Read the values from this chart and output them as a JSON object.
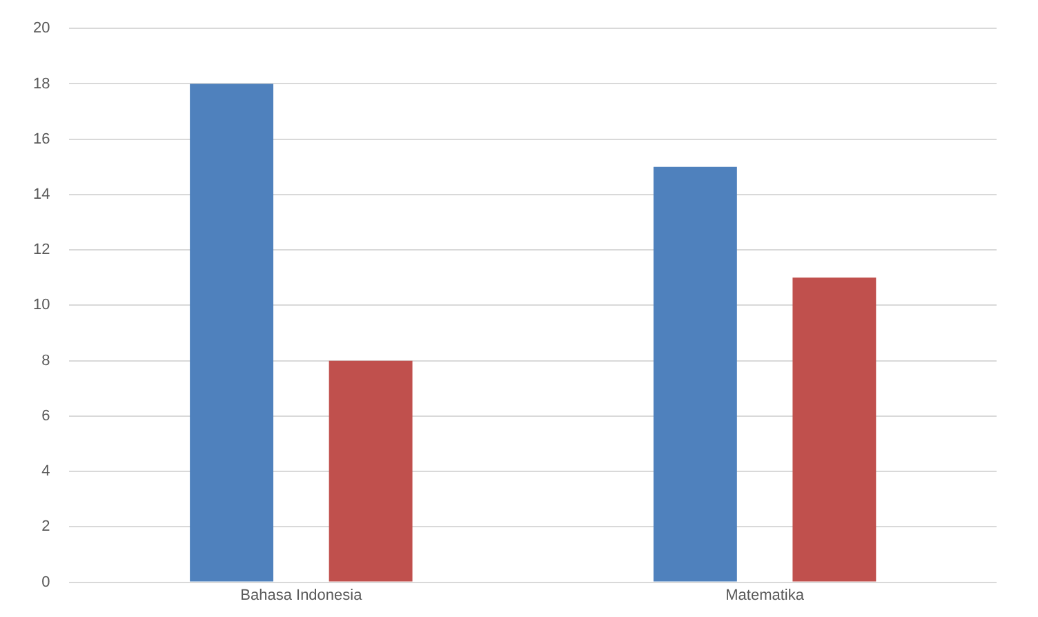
{
  "chart_data": {
    "type": "bar",
    "categories": [
      "Bahasa Indonesia",
      "Matematika"
    ],
    "series": [
      {
        "color": "#4f81bd",
        "values": [
          18,
          15
        ]
      },
      {
        "color": "#c0504d",
        "values": [
          8,
          11
        ]
      }
    ],
    "ylim": [
      0,
      20
    ],
    "yticks": [
      0,
      2,
      4,
      6,
      8,
      10,
      12,
      14,
      16,
      18,
      20
    ],
    "grid": "y",
    "legend": false
  }
}
